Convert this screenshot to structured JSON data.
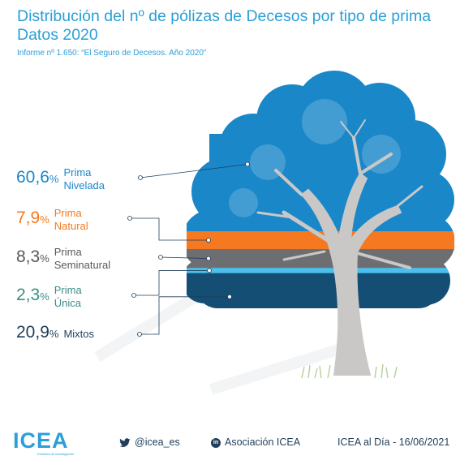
{
  "header": {
    "title": "Distribución del nº de pólizas de Decesos por tipo de prima Datos 2020",
    "subtitle": "Informe nº 1.650: “El Seguro de Decesos. Año 2020”"
  },
  "chart_data": {
    "type": "pie",
    "title": "Distribución del nº de pólizas de Decesos por tipo de prima Datos 2020",
    "unit": "%",
    "categories": [
      "Prima Nivelada",
      "Prima Natural",
      "Prima Seminatural",
      "Prima Única",
      "Mixtos"
    ],
    "values": [
      60.6,
      7.9,
      8.3,
      2.3,
      20.9
    ],
    "value_labels": [
      "60,6",
      "7,9",
      "8,3",
      "2,3",
      "20,9"
    ],
    "colors": [
      "#1a87c9",
      "#f47920",
      "#6d6e71",
      "#4cc0ec",
      "#144e75"
    ],
    "label_colors": [
      "#1a87c9",
      "#f47920",
      "#58595b",
      "#3f8d89",
      "#1f3e5a"
    ],
    "label_lines": [
      [
        "Prima",
        "Nivelada"
      ],
      [
        "Prima",
        "Natural"
      ],
      [
        "Prima",
        "Seminatural"
      ],
      [
        "Prima",
        "Única"
      ],
      [
        "Mixtos"
      ]
    ]
  },
  "footer": {
    "logo_text": "ICEA",
    "logo_sub": "Estudios de investigación",
    "twitter": "@icea_es",
    "linkedin": "Asociación ICEA",
    "date_text": "ICEA al Día - 16/06/2021",
    "twitter_icon": "twitter-bird-icon",
    "linkedin_icon": "linkedin-icon"
  }
}
